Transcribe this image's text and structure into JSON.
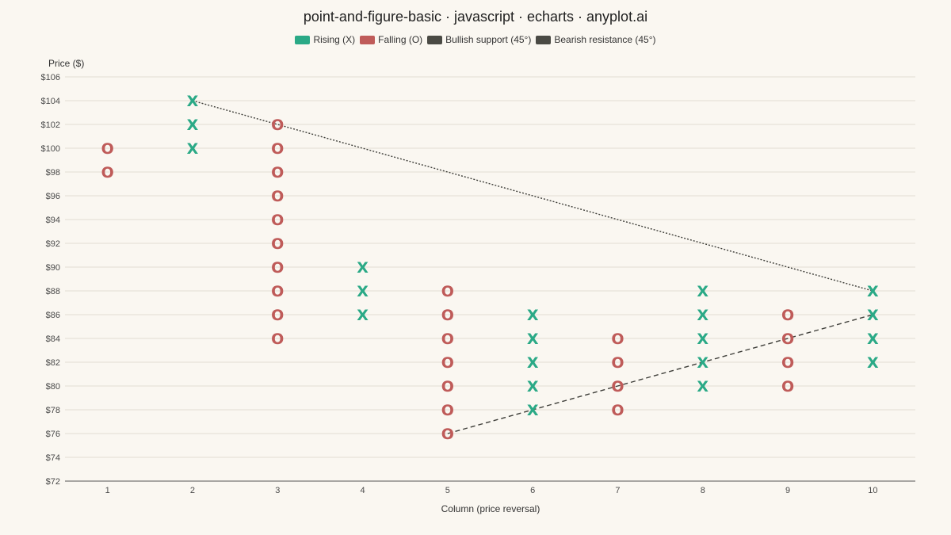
{
  "chart_data": {
    "type": "scatter",
    "title": "point-and-figure-basic · javascript · echarts · anyplot.ai",
    "xlabel": "Column (price reversal)",
    "ylabel": "Price ($)",
    "ylim": [
      72,
      106
    ],
    "y_step": 2,
    "y_tick_prefix": "$",
    "xlim": [
      0.5,
      10.5
    ],
    "x_ticks": [
      1,
      2,
      3,
      4,
      5,
      6,
      7,
      8,
      9,
      10
    ],
    "grid": true,
    "legend_position": "top-center",
    "legend": [
      {
        "name": "Rising (X)",
        "color": "#2aa986"
      },
      {
        "name": "Falling (O)",
        "color": "#bf5b59"
      },
      {
        "name": "Bullish support (45°)",
        "color": "#4a4a44"
      },
      {
        "name": "Bearish resistance (45°)",
        "color": "#4a4a44"
      }
    ],
    "columns": [
      {
        "x": 1,
        "type": "O",
        "prices": [
          100,
          98
        ]
      },
      {
        "x": 2,
        "type": "X",
        "prices": [
          100,
          102,
          104
        ]
      },
      {
        "x": 3,
        "type": "O",
        "prices": [
          102,
          100,
          98,
          96,
          94,
          92,
          90,
          88,
          86,
          84
        ]
      },
      {
        "x": 4,
        "type": "X",
        "prices": [
          86,
          88,
          90
        ]
      },
      {
        "x": 5,
        "type": "O",
        "prices": [
          88,
          86,
          84,
          82,
          80,
          78,
          76
        ]
      },
      {
        "x": 6,
        "type": "X",
        "prices": [
          78,
          80,
          82,
          84,
          86
        ]
      },
      {
        "x": 7,
        "type": "O",
        "prices": [
          84,
          82,
          80,
          78
        ]
      },
      {
        "x": 8,
        "type": "X",
        "prices": [
          80,
          82,
          84,
          86,
          88
        ]
      },
      {
        "x": 9,
        "type": "O",
        "prices": [
          86,
          84,
          82,
          80
        ]
      },
      {
        "x": 10,
        "type": "X",
        "prices": [
          82,
          84,
          86,
          88
        ]
      }
    ],
    "trendlines": [
      {
        "name": "Bullish support (45°)",
        "points": [
          [
            5,
            76
          ],
          [
            10,
            86
          ]
        ],
        "style": "dashed"
      },
      {
        "name": "Bearish resistance (45°)",
        "points": [
          [
            2,
            104
          ],
          [
            10,
            88
          ]
        ],
        "style": "dotted"
      }
    ],
    "colors": {
      "rising": "#2aa986",
      "falling": "#bf5b59",
      "trend": "#3f3f3a",
      "grid": "#e2ddd2",
      "axis": "#555555"
    }
  }
}
